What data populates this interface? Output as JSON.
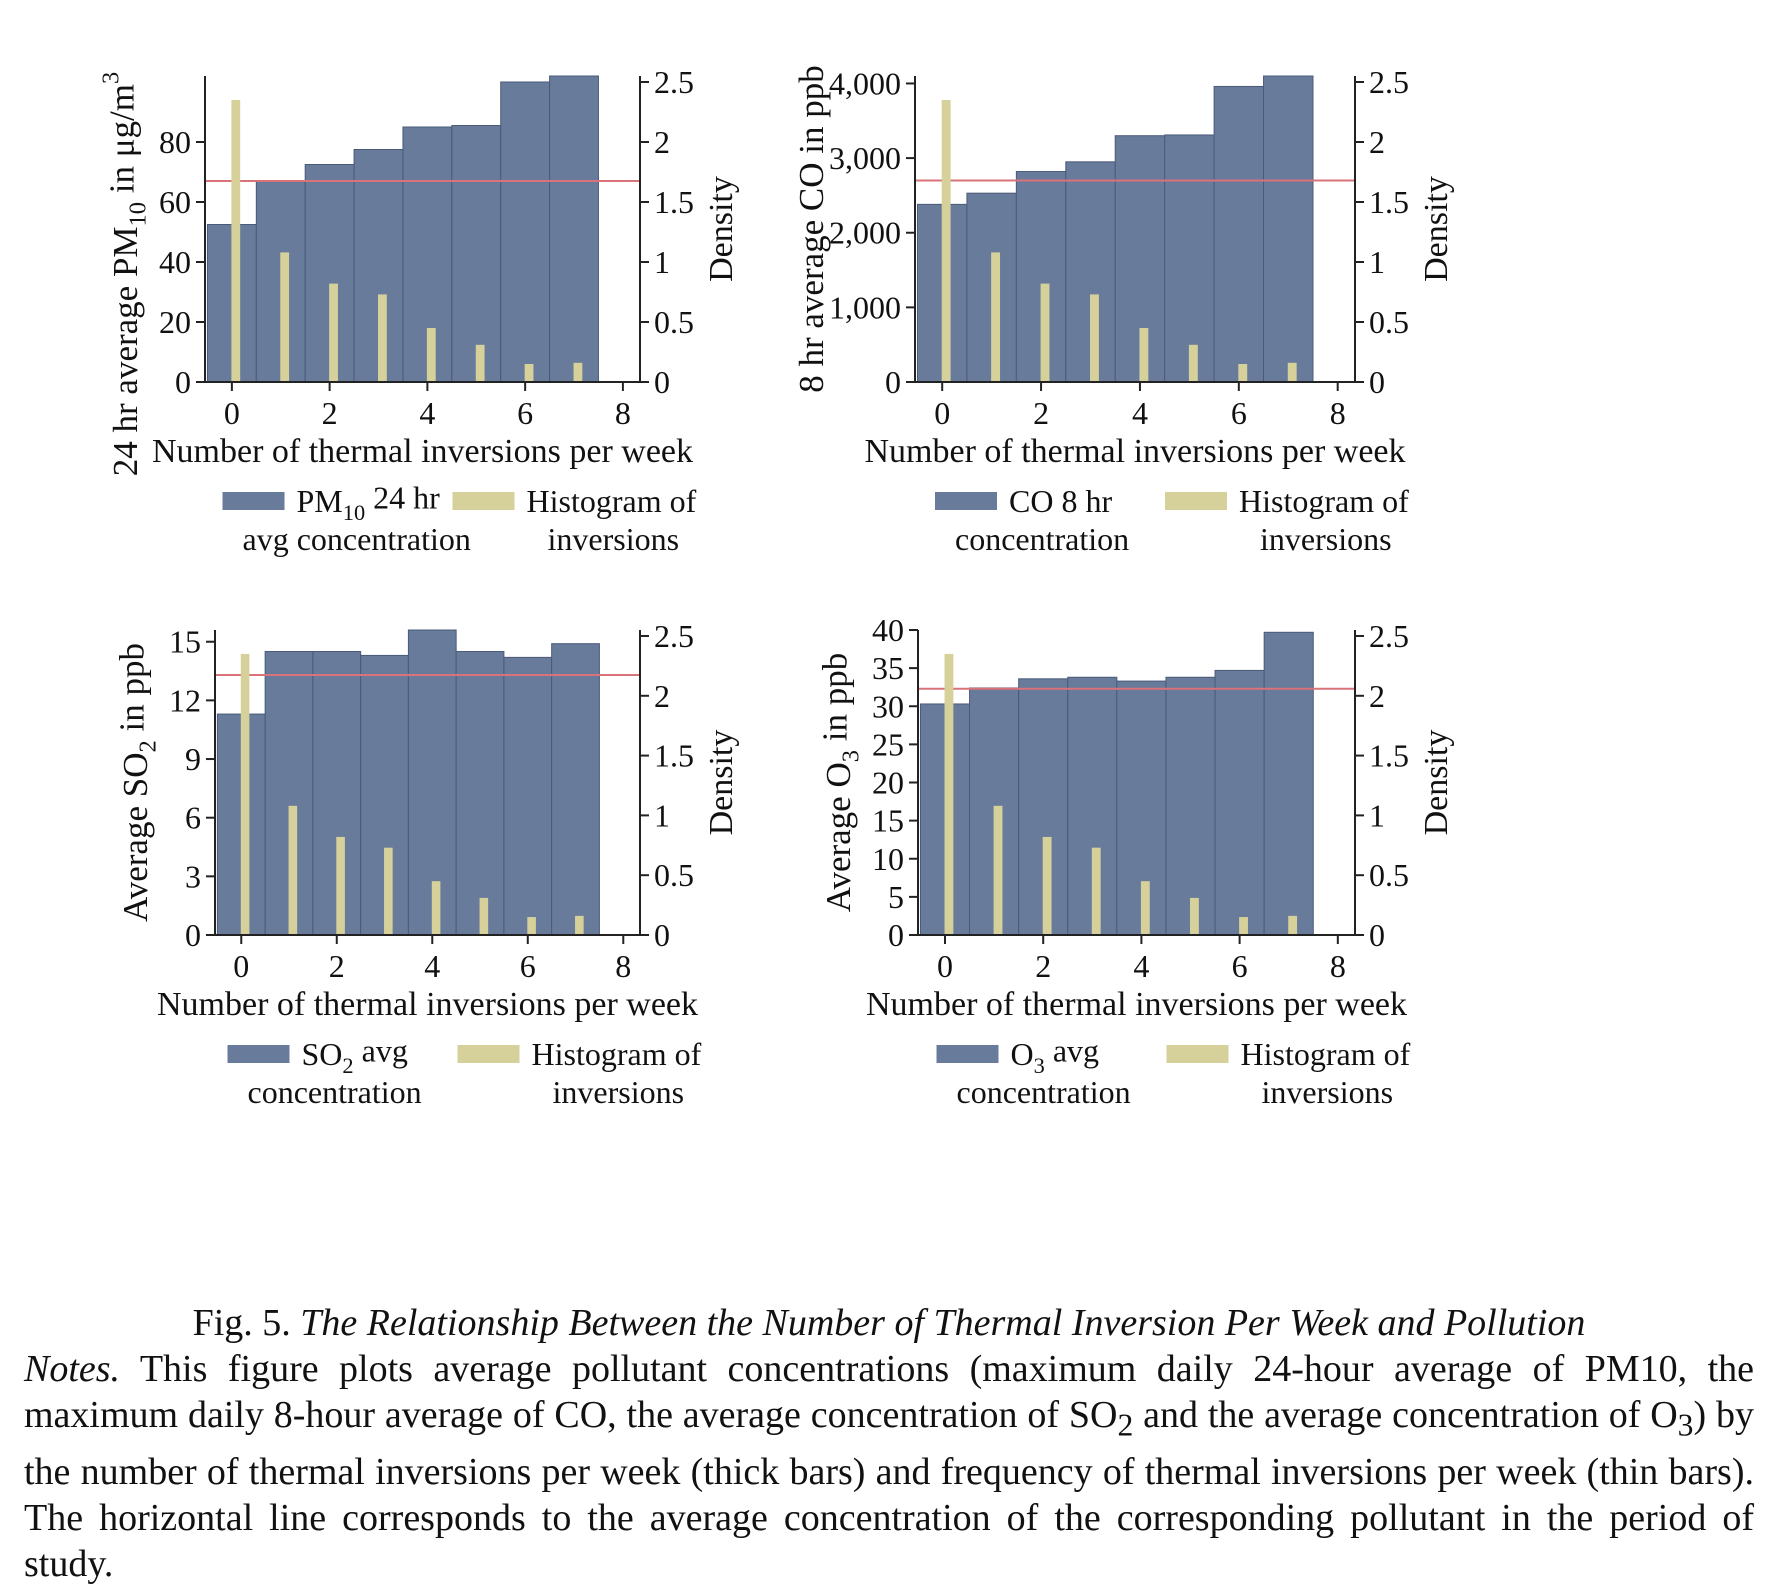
{
  "colors": {
    "pollutant_bar": "#687b9b",
    "pollutant_bar_edge": "#4a5b78",
    "histogram_bar": "#d6d09a",
    "mean_line": "#d9737a"
  },
  "chart_data": [
    {
      "type": "bar",
      "id": "pm10",
      "x": [
        0,
        1,
        2,
        3,
        4,
        5,
        6,
        7
      ],
      "xlabel": "Number of thermal inversions per week",
      "xticks": [
        "0",
        "2",
        "4",
        "6",
        "8"
      ],
      "ylabel_parts": [
        "24 hr average PM",
        "10",
        " in μg/m",
        "3"
      ],
      "ylim": [
        0,
        102
      ],
      "yticks": [
        0,
        20,
        40,
        60,
        80
      ],
      "ytick_labels": [
        "0",
        "20",
        "40",
        "60",
        "80"
      ],
      "y2label": "Density",
      "y2lim": [
        0,
        2.55
      ],
      "y2ticks": [
        0,
        0.5,
        1,
        1.5,
        2,
        2.5
      ],
      "y2tick_labels": [
        "0",
        "0.5",
        "1",
        "1.5",
        "2",
        "2.5"
      ],
      "mean_line": 67,
      "series": [
        {
          "name_parts": [
            "PM",
            "10",
            " 24 hr",
            "avg concentration"
          ],
          "axis": "left",
          "values": [
            52.5,
            67,
            72.5,
            77.5,
            85,
            85.5,
            100,
            102
          ]
        },
        {
          "name_parts": [
            "Histogram of",
            "inversions"
          ],
          "axis": "right",
          "values": [
            2.35,
            1.08,
            0.82,
            0.73,
            0.45,
            0.31,
            0.15,
            0.16
          ]
        }
      ],
      "grid": false,
      "legend": "bottom"
    },
    {
      "type": "bar",
      "id": "co",
      "x": [
        0,
        1,
        2,
        3,
        4,
        5,
        6,
        7
      ],
      "xlabel": "Number of thermal inversions per week",
      "xticks": [
        "0",
        "2",
        "4",
        "6",
        "8"
      ],
      "ylabel_parts": [
        "8 hr average CO in ppb"
      ],
      "ylim": [
        0,
        4100
      ],
      "yticks": [
        0,
        1000,
        2000,
        3000,
        4000
      ],
      "ytick_labels": [
        "0",
        "1,000",
        "2,000",
        "3,000",
        "4,000"
      ],
      "y2label": "Density",
      "y2lim": [
        0,
        2.55
      ],
      "y2ticks": [
        0,
        0.5,
        1,
        1.5,
        2,
        2.5
      ],
      "y2tick_labels": [
        "0",
        "0.5",
        "1",
        "1.5",
        "2",
        "2.5"
      ],
      "mean_line": 2700,
      "series": [
        {
          "name_parts": [
            "CO 8 hr",
            "concentration"
          ],
          "axis": "left",
          "values": [
            2380,
            2530,
            2820,
            2950,
            3300,
            3310,
            3960,
            4100
          ]
        },
        {
          "name_parts": [
            "Histogram of",
            "inversions"
          ],
          "axis": "right",
          "values": [
            2.35,
            1.08,
            0.82,
            0.73,
            0.45,
            0.31,
            0.15,
            0.16
          ]
        }
      ],
      "grid": false,
      "legend": "bottom"
    },
    {
      "type": "bar",
      "id": "so2",
      "x": [
        0,
        1,
        2,
        3,
        4,
        5,
        6,
        7
      ],
      "xlabel": "Number of thermal inversions per week",
      "xticks": [
        "0",
        "2",
        "4",
        "6",
        "8"
      ],
      "ylabel_parts": [
        "Average SO",
        "2",
        " in ppb"
      ],
      "ylim": [
        0,
        15.6
      ],
      "yticks": [
        0,
        3,
        6,
        9,
        12,
        15
      ],
      "ytick_labels": [
        "0",
        "3",
        "6",
        "9",
        "12",
        "15"
      ],
      "y2label": "Density",
      "y2lim": [
        0,
        2.55
      ],
      "y2ticks": [
        0,
        0.5,
        1,
        1.5,
        2,
        2.5
      ],
      "y2tick_labels": [
        "0",
        "0.5",
        "1",
        "1.5",
        "2",
        "2.5"
      ],
      "mean_line": 13.3,
      "series": [
        {
          "name_parts": [
            "SO",
            "2",
            " avg",
            "concentration"
          ],
          "axis": "left",
          "values": [
            11.3,
            14.5,
            14.5,
            14.3,
            15.6,
            14.5,
            14.2,
            14.9
          ]
        },
        {
          "name_parts": [
            "Histogram of",
            "inversions"
          ],
          "axis": "right",
          "values": [
            2.35,
            1.08,
            0.82,
            0.73,
            0.45,
            0.31,
            0.15,
            0.16
          ]
        }
      ],
      "grid": false,
      "legend": "bottom"
    },
    {
      "type": "bar",
      "id": "o3",
      "x": [
        0,
        1,
        2,
        3,
        4,
        5,
        6,
        7
      ],
      "xlabel": "Number of thermal inversions per week",
      "xticks": [
        "0",
        "2",
        "4",
        "6",
        "8"
      ],
      "ylabel_parts": [
        "Average O",
        "3",
        " in ppb"
      ],
      "ylim": [
        0,
        40
      ],
      "yticks": [
        0,
        5,
        10,
        15,
        20,
        25,
        30,
        35,
        40
      ],
      "ytick_labels": [
        "0",
        "5",
        "10",
        "15",
        "20",
        "25",
        "30",
        "35",
        "40"
      ],
      "y2label": "Density",
      "y2lim": [
        0,
        2.55
      ],
      "y2ticks": [
        0,
        0.5,
        1,
        1.5,
        2,
        2.5
      ],
      "y2tick_labels": [
        "0",
        "0.5",
        "1",
        "1.5",
        "2",
        "2.5"
      ],
      "mean_line": 32.3,
      "series": [
        {
          "name_parts": [
            "O",
            "3",
            " avg",
            "concentration"
          ],
          "axis": "left",
          "values": [
            30.3,
            32.4,
            33.6,
            33.8,
            33.3,
            33.8,
            34.7,
            39.7
          ]
        },
        {
          "name_parts": [
            "Histogram of",
            "inversions"
          ],
          "axis": "right",
          "values": [
            2.35,
            1.08,
            0.82,
            0.73,
            0.45,
            0.31,
            0.15,
            0.16
          ]
        }
      ],
      "grid": false,
      "legend": "bottom"
    }
  ],
  "caption": {
    "fig_num": "Fig. 5.",
    "title": "The Relationship Between the Number of Thermal Inversion Per Week and Pollution",
    "notes_label": "Notes.",
    "notes_parts": [
      " This figure plots average pollutant concentrations (maximum daily 24-hour average of PM10, the maximum daily 8-hour average of CO, the average concentration of SO",
      "2",
      " and the average concentration of O",
      "3",
      ") by the number of thermal inversions per week (thick bars) and frequency of thermal inversions per week (thin bars). The horizontal line corresponds to the average concentration of the corresponding pollutant in the period of study."
    ]
  }
}
